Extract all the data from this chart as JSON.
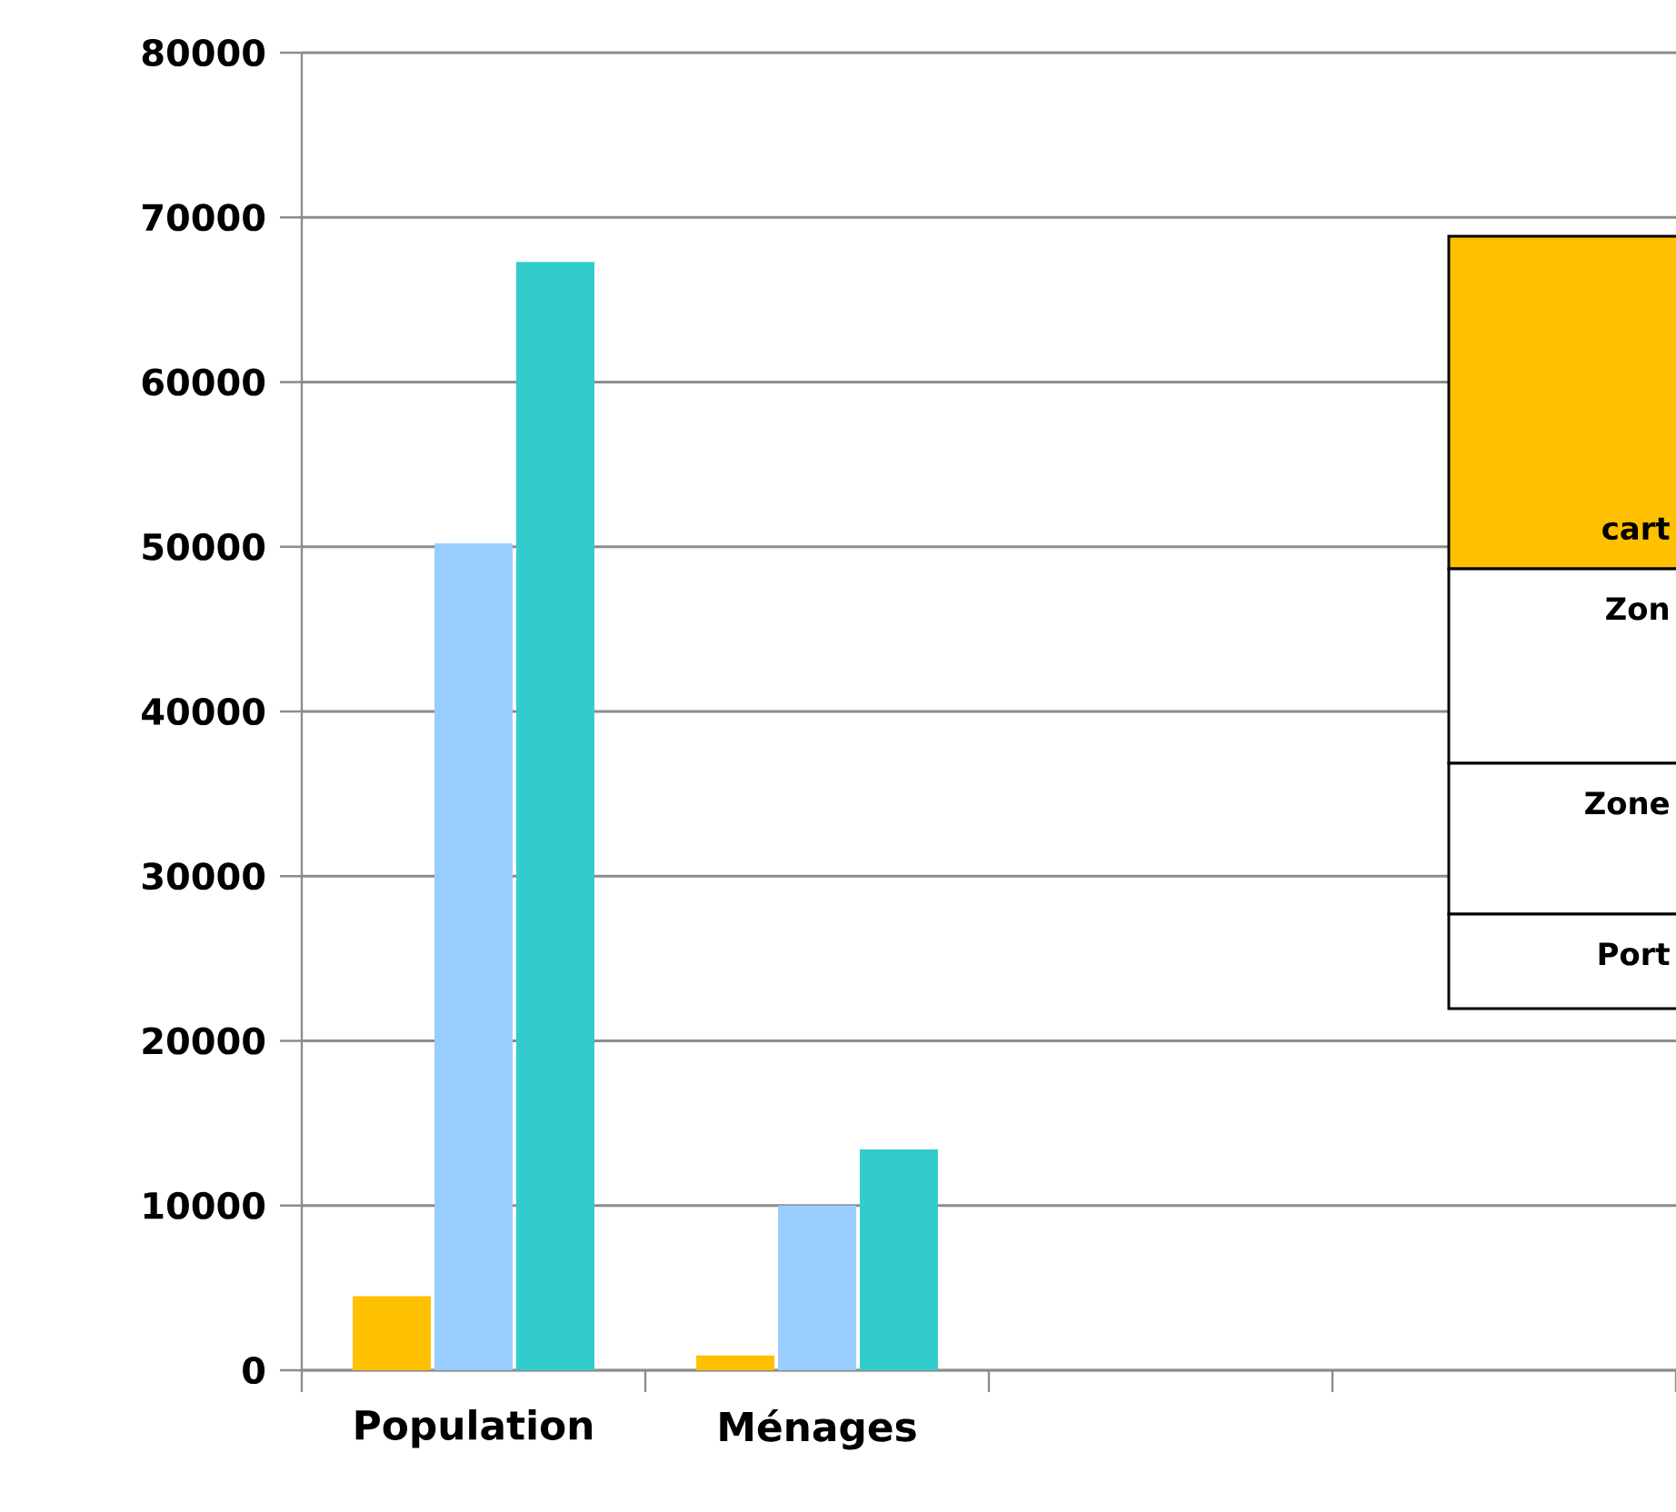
{
  "chart_data": {
    "type": "bar",
    "categories": [
      "Population",
      "Ménages",
      null,
      null
    ],
    "series": [
      {
        "color": "#ffc000",
        "values": [
          4500,
          900,
          null,
          null
        ]
      },
      {
        "color": "#99ccff",
        "values": [
          50200,
          10000,
          null,
          null
        ]
      },
      {
        "color": "#33cccc",
        "values": [
          67300,
          13400,
          null,
          null
        ]
      }
    ],
    "ylim": [
      0,
      80000
    ],
    "yticks": [
      0,
      10000,
      20000,
      30000,
      40000,
      50000,
      60000,
      70000,
      80000
    ],
    "grid": "y",
    "annotations": [
      "cart",
      "Zon",
      "Zone",
      "Port"
    ]
  }
}
